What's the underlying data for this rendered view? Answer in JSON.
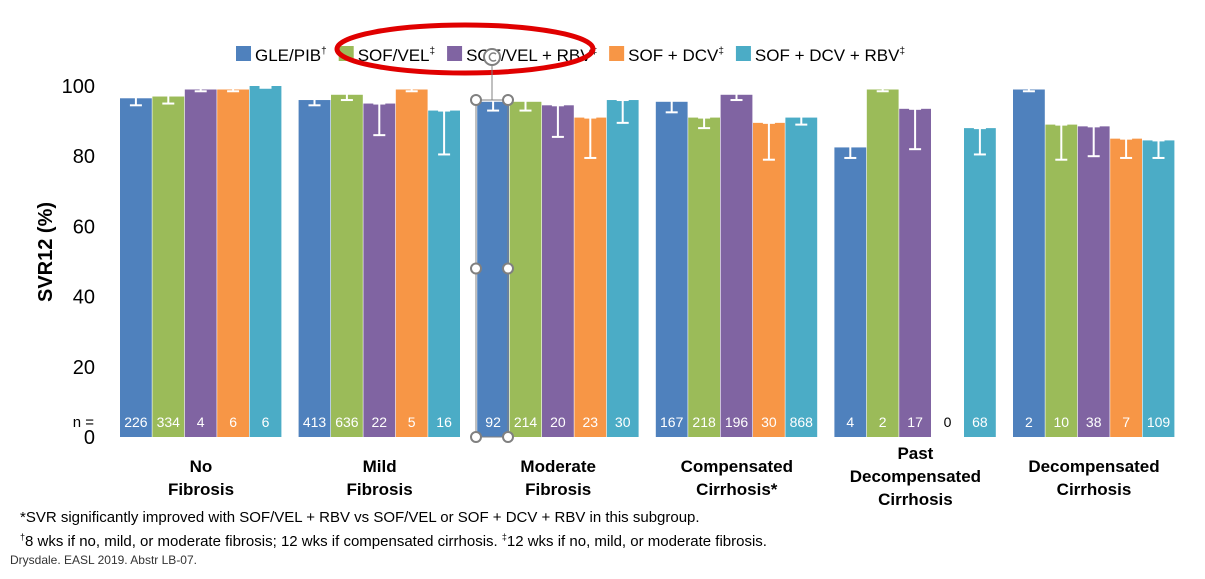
{
  "colors": {
    "series": [
      "#4F81BD",
      "#9BBB59",
      "#8064A2",
      "#F79646",
      "#4BACC6"
    ],
    "error_bar": "#ffffff",
    "annotation_ring": "#E00000",
    "selection_handle": "#808080"
  },
  "chart_data": {
    "type": "bar",
    "ylabel": "SVR12 (%)",
    "ylim": [
      0,
      100
    ],
    "yticks": [
      0,
      20,
      40,
      60,
      80,
      100
    ],
    "grid": false,
    "legend_position": "top",
    "n_prefix": "n =",
    "categories": [
      [
        "No",
        "Fibrosis"
      ],
      [
        "Mild",
        "Fibrosis"
      ],
      [
        "Moderate",
        "Fibrosis"
      ],
      [
        "Compensated",
        "Cirrhosis*"
      ],
      [
        "Past",
        "Decompensated",
        "Cirrhosis"
      ],
      [
        "Decompensated",
        "Cirrhosis"
      ]
    ],
    "series": [
      {
        "name": "GLE/PIB",
        "sup": "†",
        "values": [
          96.5,
          96,
          95.5,
          95.5,
          82.5,
          99
        ],
        "ci_low": [
          94.5,
          94.5,
          93,
          92.5,
          79.5,
          98.5
        ],
        "ci_high": [
          97,
          97,
          97.5,
          97,
          85,
          99.5
        ],
        "n": [
          "226",
          "413",
          "92",
          "167",
          "4",
          "2"
        ]
      },
      {
        "name": "SOF/VEL",
        "sup": "‡",
        "values": [
          97,
          97.5,
          95.5,
          91,
          99,
          89
        ],
        "ci_low": [
          95,
          96,
          93,
          88,
          98.5,
          79
        ],
        "ci_high": [
          98,
          98.5,
          97,
          91,
          99.5,
          89
        ],
        "n": [
          "334",
          "636",
          "214",
          "218",
          "2",
          "10"
        ]
      },
      {
        "name": "SOF/VEL + RBV",
        "sup": "‡",
        "values": [
          99,
          95,
          94.5,
          97.5,
          93.5,
          88.5
        ],
        "ci_low": [
          98.5,
          86,
          85.5,
          96,
          82,
          80
        ],
        "ci_high": [
          99.5,
          95,
          94.5,
          99,
          93.5,
          88.5
        ],
        "n": [
          "4",
          "22",
          "20",
          "196",
          "17",
          "38"
        ]
      },
      {
        "name": "SOF + DCV",
        "sup": "‡",
        "values": [
          99,
          99,
          91,
          89.5,
          null,
          85
        ],
        "ci_low": [
          98.5,
          98.5,
          79.5,
          79,
          null,
          79.5
        ],
        "ci_high": [
          99.5,
          99.5,
          91,
          89.5,
          null,
          85
        ],
        "n": [
          "6",
          "5",
          "23",
          "30",
          "0",
          "7"
        ]
      },
      {
        "name": "SOF + DCV + RBV",
        "sup": "‡",
        "values": [
          100,
          93,
          96,
          91,
          88,
          84.5
        ],
        "ci_low": [
          99.5,
          80.5,
          89.5,
          89,
          80.5,
          79.5
        ],
        "ci_high": [
          100,
          93,
          96,
          92.5,
          88,
          84.5
        ],
        "n": [
          "6",
          "16",
          "30",
          "868",
          "68",
          "109"
        ]
      }
    ]
  },
  "footnotes": {
    "line1": "*SVR significantly improved with SOF/VEL + RBV vs SOF/VEL or SOF + DCV + RBV in this subgroup.",
    "line2_sup1": "†",
    "line2_a": "8 wks if no, mild, or moderate fibrosis; 12 wks if compensated cirrhosis. ",
    "line2_sup2": "‡",
    "line2_b": "12 wks if no, mild, or moderate fibrosis.",
    "source": "Drysdale. EASL 2019. Abstr LB-07."
  }
}
